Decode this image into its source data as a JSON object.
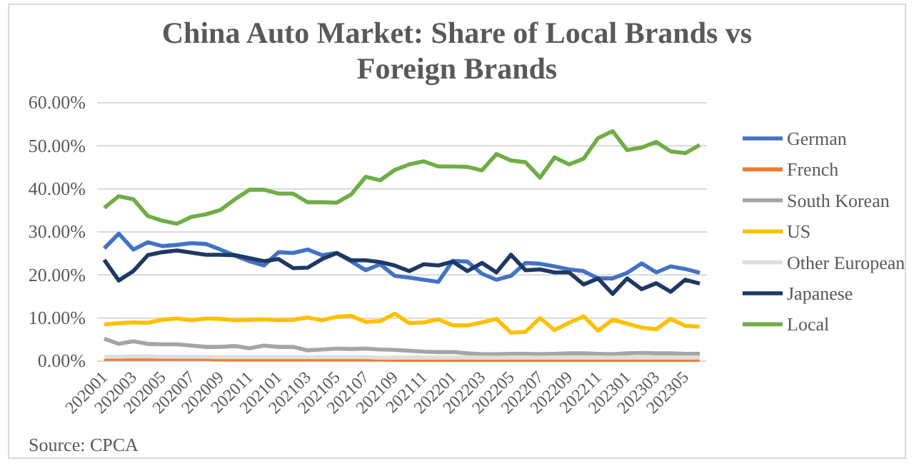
{
  "chart_data": {
    "type": "line",
    "title": "China Auto Market: Share of Local Brands vs Foreign Brands",
    "categories": [
      "202001",
      null,
      "202003",
      null,
      "202005",
      null,
      "202007",
      null,
      "202009",
      null,
      "202011",
      null,
      "202101",
      null,
      "202103",
      null,
      "202105",
      null,
      "202107",
      null,
      "202109",
      null,
      "202111",
      null,
      "202201",
      null,
      "202203",
      null,
      "202205",
      null,
      "202207",
      null,
      "202209",
      null,
      "202211",
      null,
      "202301",
      null,
      "202303",
      null,
      "202305",
      null
    ],
    "series": [
      {
        "name": "German",
        "color": "#4472c4",
        "values": [
          26.2,
          29.6,
          25.9,
          27.6,
          26.7,
          27.0,
          27.4,
          27.2,
          25.9,
          24.5,
          23.2,
          22.2,
          25.3,
          25.1,
          25.9,
          24.6,
          25.1,
          23.2,
          21.1,
          22.5,
          19.8,
          19.4,
          18.9,
          18.4,
          23.3,
          23.1,
          20.3,
          18.9,
          19.8,
          22.8,
          22.6,
          22.0,
          21.3,
          20.9,
          19.2,
          19.2,
          20.5,
          22.7,
          20.6,
          22.0,
          21.4,
          20.5
        ]
      },
      {
        "name": "French",
        "color": "#ed7d31",
        "values": [
          0.5,
          0.5,
          0.5,
          0.5,
          0.5,
          0.5,
          0.5,
          0.5,
          0.4,
          0.4,
          0.4,
          0.4,
          0.4,
          0.4,
          0.4,
          0.4,
          0.4,
          0.4,
          0.4,
          0.4,
          0.3,
          0.3,
          0.3,
          0.3,
          0.3,
          0.3,
          0.3,
          0.3,
          0.3,
          0.3,
          0.3,
          0.3,
          0.3,
          0.3,
          0.3,
          0.3,
          0.3,
          0.3,
          0.3,
          0.3,
          0.3,
          0.3
        ]
      },
      {
        "name": "South Korean",
        "color": "#a5a5a5",
        "values": [
          5.2,
          4.0,
          4.6,
          4.0,
          3.9,
          3.9,
          3.6,
          3.3,
          3.3,
          3.5,
          3.0,
          3.6,
          3.3,
          3.3,
          2.5,
          2.7,
          2.9,
          2.8,
          2.9,
          2.7,
          2.6,
          2.4,
          2.2,
          2.1,
          2.1,
          1.8,
          1.6,
          1.6,
          1.7,
          1.7,
          1.6,
          1.7,
          1.8,
          1.8,
          1.7,
          1.6,
          1.8,
          1.9,
          1.8,
          1.8,
          1.7,
          1.7
        ]
      },
      {
        "name": "US",
        "color": "#ffc000",
        "values": [
          8.5,
          8.8,
          9.0,
          8.9,
          9.6,
          9.9,
          9.5,
          9.9,
          9.8,
          9.5,
          9.6,
          9.7,
          9.5,
          9.6,
          10.1,
          9.5,
          10.3,
          10.5,
          9.1,
          9.3,
          11.0,
          8.8,
          9.0,
          9.7,
          8.3,
          8.3,
          9.0,
          9.8,
          6.6,
          6.8,
          10.0,
          7.2,
          8.9,
          10.4,
          7.1,
          9.6,
          8.7,
          7.8,
          7.4,
          9.8,
          8.2,
          8.0
        ]
      },
      {
        "name": "Other European",
        "color": "#dedede",
        "values": [
          1.0,
          1.0,
          1.1,
          1.1,
          1.0,
          1.0,
          1.0,
          1.0,
          0.9,
          0.9,
          0.9,
          0.9,
          0.9,
          0.9,
          0.9,
          0.9,
          0.9,
          0.9,
          0.9,
          0.8,
          0.8,
          0.8,
          0.8,
          0.8,
          0.8,
          0.8,
          0.8,
          0.8,
          0.8,
          0.8,
          0.8,
          0.8,
          0.8,
          0.8,
          0.8,
          0.8,
          0.8,
          0.8,
          0.8,
          0.8,
          0.8,
          0.8
        ]
      },
      {
        "name": "Japanese",
        "color": "#1f3864",
        "values": [
          23.5,
          18.7,
          20.9,
          24.6,
          25.3,
          25.7,
          25.2,
          24.7,
          24.7,
          24.6,
          23.9,
          23.2,
          23.7,
          21.6,
          21.7,
          23.7,
          25.1,
          23.4,
          23.4,
          23.0,
          22.2,
          20.9,
          22.5,
          22.2,
          23.1,
          20.9,
          22.8,
          20.6,
          24.7,
          21.1,
          21.3,
          20.6,
          20.6,
          17.8,
          19.2,
          15.6,
          19.2,
          16.7,
          18.1,
          16.1,
          18.9,
          18.0
        ]
      },
      {
        "name": "Local",
        "color": "#70ad47",
        "values": [
          35.6,
          38.3,
          37.6,
          33.7,
          32.6,
          31.9,
          33.5,
          34.1,
          35.1,
          37.6,
          39.8,
          39.8,
          38.9,
          38.9,
          36.9,
          36.9,
          36.8,
          38.7,
          42.8,
          42.0,
          44.4,
          45.7,
          46.4,
          45.2,
          45.2,
          45.1,
          44.3,
          48.1,
          46.6,
          46.2,
          42.6,
          47.3,
          45.7,
          47.0,
          51.8,
          53.4,
          49.0,
          49.6,
          50.9,
          48.7,
          48.3,
          50.2
        ]
      }
    ],
    "ylim": [
      0,
      60
    ],
    "yticks": [
      {
        "value": 0,
        "label": "0.00%"
      },
      {
        "value": 10,
        "label": "10.00%"
      },
      {
        "value": 20,
        "label": "20.00%"
      },
      {
        "value": 30,
        "label": "30.00%"
      },
      {
        "value": 40,
        "label": "40.00%"
      },
      {
        "value": 50,
        "label": "50.00%"
      },
      {
        "value": 60,
        "label": "60.00%"
      }
    ],
    "grid": "y",
    "legend": "right",
    "marker": "none",
    "annotations": [
      "Source: CPCA"
    ]
  }
}
